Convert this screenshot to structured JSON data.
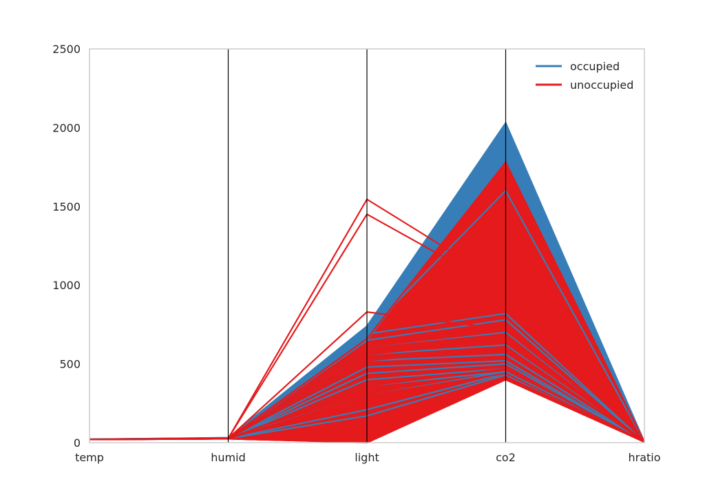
{
  "chart_data": {
    "type": "parallel-coordinates",
    "title": "",
    "xlabel": "",
    "ylabel": "",
    "axes": [
      "temp",
      "humid",
      "light",
      "co2",
      "hratio"
    ],
    "ylim": [
      0,
      2500
    ],
    "yticks": [
      0,
      500,
      1000,
      1500,
      2000,
      2500
    ],
    "grid": false,
    "legend_position": "top-right",
    "colors": {
      "occupied": "#377eb8",
      "unoccupied": "#e41a1c",
      "axis": "#000000",
      "frame": "#cccccc"
    },
    "series": [
      {
        "name": "occupied",
        "color": "#377eb8",
        "lines": [
          [
            22,
            32,
            740,
            2030,
            5
          ],
          [
            22,
            31,
            720,
            1800,
            5
          ],
          [
            21,
            30,
            700,
            1600,
            5
          ],
          [
            21,
            29,
            690,
            820,
            5
          ],
          [
            22,
            30,
            650,
            780,
            5
          ],
          [
            21,
            28,
            600,
            700,
            5
          ],
          [
            21,
            27,
            560,
            620,
            5
          ],
          [
            20,
            26,
            520,
            560,
            5
          ],
          [
            20,
            26,
            480,
            520,
            5
          ],
          [
            20,
            25,
            440,
            500,
            5
          ],
          [
            20,
            25,
            400,
            470,
            5
          ],
          [
            21,
            27,
            360,
            450,
            5
          ],
          [
            21,
            28,
            300,
            450,
            5
          ],
          [
            20,
            26,
            210,
            440,
            5
          ],
          [
            20,
            26,
            170,
            430,
            5
          ]
        ],
        "bands": [
          {
            "from": [
              22,
              32,
              740,
              2030,
              5
            ],
            "to": [
              20,
              25,
              560,
              820,
              4
            ]
          },
          {
            "from": [
              21,
              30,
              640,
              1600,
              5
            ],
            "to": [
              20,
              25,
              440,
              700,
              4
            ]
          }
        ]
      },
      {
        "name": "unoccupied",
        "color": "#e41a1c",
        "lines": [
          [
            21,
            27,
            1545,
            1000,
            4
          ],
          [
            21,
            27,
            1450,
            960,
            4
          ],
          [
            21,
            27,
            830,
            720,
            4
          ],
          [
            21,
            28,
            660,
            1780,
            4
          ],
          [
            20,
            26,
            600,
            690,
            4
          ],
          [
            20,
            26,
            560,
            650,
            4
          ],
          [
            20,
            25,
            520,
            610,
            4
          ],
          [
            20,
            25,
            360,
            470,
            4
          ],
          [
            20,
            25,
            300,
            440,
            4
          ],
          [
            20,
            25,
            0,
            420,
            4
          ],
          [
            20,
            25,
            0,
            400,
            4
          ]
        ],
        "bands": [
          {
            "from": [
              21,
              28,
              640,
              1780,
              4
            ],
            "to": [
              20,
              24,
              440,
              450,
              4
            ]
          },
          {
            "from": [
              20,
              25,
              560,
              450,
              4
            ],
            "to": [
              19,
              22,
              0,
              400,
              3
            ]
          }
        ]
      }
    ]
  }
}
